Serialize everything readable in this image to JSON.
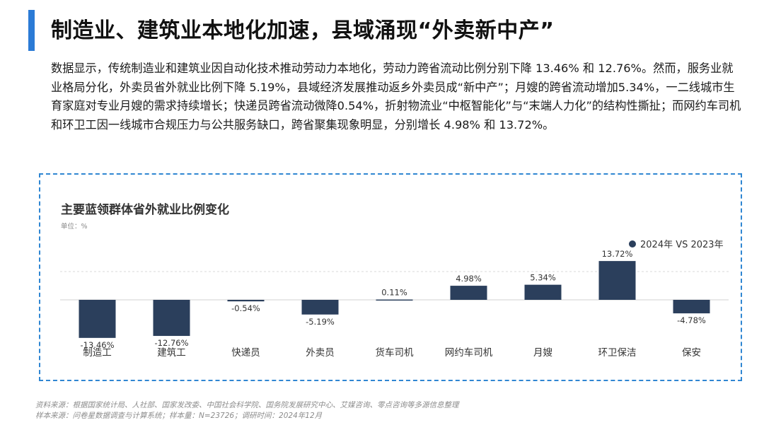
{
  "header": {
    "title": "制造业、建筑业本地化加速，县域涌现“外卖新中产”"
  },
  "summary": {
    "text": "数据显示，传统制造业和建筑业因自动化技术推动劳动力本地化，劳动力跨省流动比例分别下降 13.46% 和 12.76%。然而，服务业就业格局分化，外卖员省外就业比例下降 5.19%，县域经济发展推动返乡外卖员成“新中产”；月嫂的跨省流动增加5.34%，一二线城市生育家庭对专业月嫂的需求持续增长；快递员跨省流动微降0.54%，折射物流业“中枢智能化”与“末端人力化”的结构性撕扯；而网约车司机和环卫工因一线城市合规压力与公共服务缺口，跨省聚集现象明显，分别增长 4.98% 和 13.72%。"
  },
  "chart_data": {
    "type": "bar",
    "title": "主要蓝领群体省外就业比例变化",
    "unit": "单位：%",
    "categories": [
      "制造工",
      "建筑工",
      "快递员",
      "外卖员",
      "货车司机",
      "网约车司机",
      "月嫂",
      "环卫保洁",
      "保安"
    ],
    "series": [
      {
        "name": "2024年 VS 2023年",
        "values": [
          -13.46,
          -12.76,
          -0.54,
          -5.19,
          0.11,
          4.98,
          5.34,
          13.72,
          -4.78
        ],
        "labels": [
          "-13.46%",
          "-12.76%",
          "-0.54%",
          "-5.19%",
          "0.11%",
          "4.98%",
          "5.34%",
          "13.72%",
          "-4.78%"
        ]
      }
    ],
    "ylim": [
      -14,
      16
    ],
    "gridline_at": 10,
    "legend_position": "top-right",
    "bar_color": "#2b3f5c",
    "legend_color": "#2b3f5c"
  },
  "footer": {
    "source": "资料来源：根据国家统计局、人社部、国家发改委、中国社会科学院、国务院发展研究中心、艾媒咨询、零点咨询等多源信息整理",
    "sample": "样本来源：问卷星数据调查与计算系统；样本量：N=23726；调研时间：2024年12月"
  }
}
